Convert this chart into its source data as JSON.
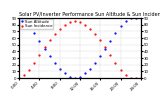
{
  "title": "Solar PV/Inverter Performance Sun Altitude & Sun Incidence Angle",
  "legend_label1": "Sun Altitude",
  "legend_label2": "Sun Incidence",
  "blue_color": "#0000ff",
  "red_color": "#ff0000",
  "background": "#ffffff",
  "grid_color": "#888888",
  "x_values": [
    0,
    1,
    2,
    3,
    4,
    5,
    6,
    7,
    8,
    9,
    10,
    11,
    12,
    13,
    14,
    15,
    16,
    17,
    18,
    19,
    20,
    21,
    22,
    23,
    24
  ],
  "blue_values": [
    90,
    86,
    78,
    68,
    56,
    44,
    33,
    23,
    14,
    7,
    2,
    0,
    2,
    7,
    14,
    23,
    33,
    44,
    56,
    68,
    78,
    86,
    90,
    90,
    90
  ],
  "red_values": [
    0,
    5,
    12,
    22,
    34,
    46,
    57,
    66,
    74,
    80,
    84,
    85,
    84,
    80,
    74,
    66,
    57,
    46,
    34,
    22,
    12,
    5,
    0,
    0,
    0
  ],
  "xlim": [
    0,
    24
  ],
  "ylim": [
    0,
    90
  ],
  "x_ticks": [
    0,
    4,
    8,
    12,
    16,
    20,
    24
  ],
  "x_tick_labels": [
    "0:00",
    "4:00",
    "8:00",
    "12:00",
    "16:00",
    "20:00",
    "24:00"
  ],
  "y_ticks": [
    0,
    10,
    20,
    30,
    40,
    50,
    60,
    70,
    80,
    90
  ],
  "title_fontsize": 3.5,
  "tick_fontsize": 2.8,
  "legend_fontsize": 2.8,
  "markersize": 1.2
}
